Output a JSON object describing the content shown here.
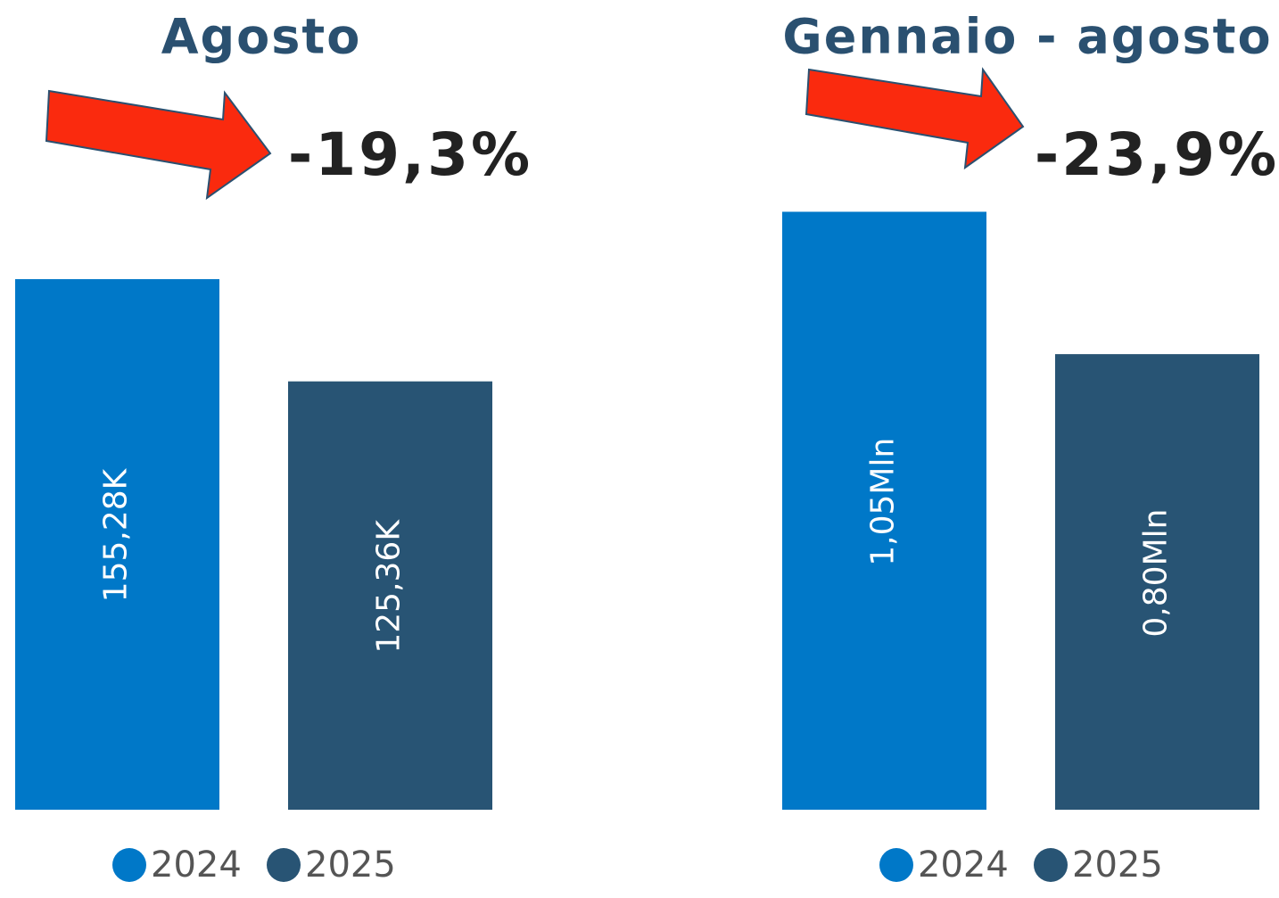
{
  "chart_data": [
    {
      "type": "bar",
      "title": "Agosto",
      "annotation": "-19,3%",
      "ylim": [
        0,
        190000
      ],
      "series": [
        {
          "name": "2024",
          "color": "#0078c8",
          "values": [
            155280
          ],
          "value_labels": [
            "155,28K"
          ]
        },
        {
          "name": "2025",
          "color": "#285474",
          "values": [
            125360
          ],
          "value_labels": [
            "125,36K"
          ]
        }
      ]
    },
    {
      "type": "bar",
      "title": "Gennaio - agosto",
      "annotation": "-23,9%",
      "ylim": [
        0,
        1140000
      ],
      "series": [
        {
          "name": "2024",
          "color": "#0078c8",
          "values": [
            1050000
          ],
          "value_labels": [
            "1,05Mln"
          ]
        },
        {
          "name": "2025",
          "color": "#285474",
          "values": [
            800000
          ],
          "value_labels": [
            "0,80Mln"
          ]
        }
      ]
    }
  ]
}
